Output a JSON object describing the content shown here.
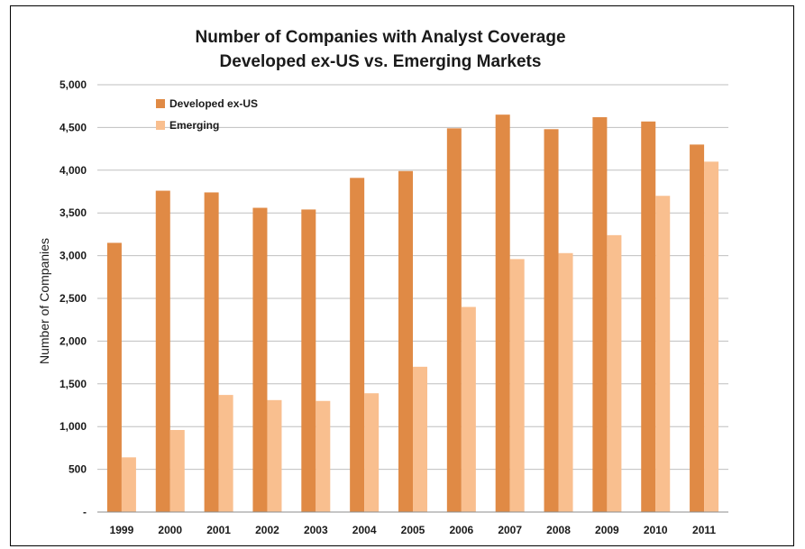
{
  "chart_data": {
    "type": "bar",
    "title": "Number of Companies with Analyst Coverage",
    "subtitle": "Developed ex-US vs. Emerging Markets",
    "xlabel": "",
    "ylabel": "Number of Companies",
    "ylim": [
      0,
      5000
    ],
    "yticks": [
      0,
      500,
      1000,
      1500,
      2000,
      2500,
      3000,
      3500,
      4000,
      4500,
      5000
    ],
    "ytick_labels": [
      "-",
      "500",
      "1,000",
      "1,500",
      "2,000",
      "2,500",
      "3,000",
      "3,500",
      "4,000",
      "4,500",
      "5,000"
    ],
    "grid": true,
    "legend_position": "top-left",
    "categories": [
      "1999",
      "2000",
      "2001",
      "2002",
      "2003",
      "2004",
      "2005",
      "2006",
      "2007",
      "2008",
      "2009",
      "2010",
      "2011"
    ],
    "series": [
      {
        "name": "Developed ex-US",
        "color": "#e08a45",
        "values": [
          3150,
          3760,
          3740,
          3560,
          3540,
          3910,
          3990,
          4490,
          4650,
          4480,
          4620,
          4570,
          4300
        ]
      },
      {
        "name": "Emerging",
        "color": "#f9bf8f",
        "values": [
          640,
          960,
          1370,
          1310,
          1300,
          1390,
          1700,
          2400,
          2960,
          3030,
          3240,
          3700,
          4100
        ]
      }
    ]
  }
}
